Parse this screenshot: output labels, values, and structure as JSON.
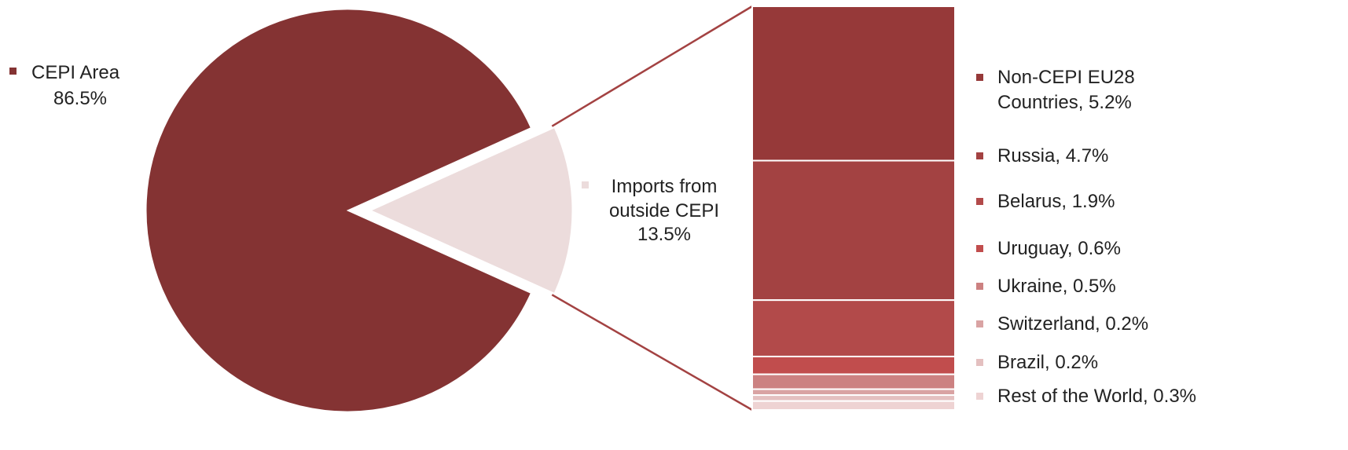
{
  "chart_data": {
    "type": "bar-of-pie",
    "title": "",
    "pie": {
      "slices": [
        {
          "name": "CEPI Area",
          "percent": "86.5%",
          "value": 86.5,
          "color": "#843333"
        },
        {
          "name": "Imports from outside CEPI",
          "percent": "13.5%",
          "value": 13.5,
          "color": "#ecdcdc"
        }
      ]
    },
    "bar": {
      "segments": [
        {
          "name": "Non-CEPI EU28",
          "name_line2": "Countries, 5.2%",
          "label": "Non-CEPI EU28 Countries, 5.2%",
          "value": 5.2,
          "color": "#963939"
        },
        {
          "name": "Russia",
          "label": "Russia, 4.7%",
          "value": 4.7,
          "color": "#a34242"
        },
        {
          "name": "Belarus",
          "label": "Belarus, 1.9%",
          "value": 1.9,
          "color": "#b24a4a"
        },
        {
          "name": "Uruguay",
          "label": "Uruguay, 0.6%",
          "value": 0.6,
          "color": "#c14d4d"
        },
        {
          "name": "Ukraine",
          "label": "Ukraine, 0.5%",
          "value": 0.5,
          "color": "#cc8181"
        },
        {
          "name": "Switzerland",
          "label": "Switzerland, 0.2%",
          "value": 0.2,
          "color": "#d9a3a3"
        },
        {
          "name": "Brazil",
          "label": "Brazil, 0.2%",
          "value": 0.2,
          "color": "#e4c0c0"
        },
        {
          "name": "Rest of the World",
          "label": "Rest of the World, 0.3%",
          "value": 0.3,
          "color": "#eed3d3"
        }
      ]
    },
    "labels": {
      "cepi_line1": "CEPI Area",
      "cepi_line2": "86.5%",
      "imports_line1": "Imports from",
      "imports_line2": "outside CEPI",
      "imports_line3": "13.5%"
    },
    "connector_color": "#a34242",
    "legend_position": "right"
  }
}
